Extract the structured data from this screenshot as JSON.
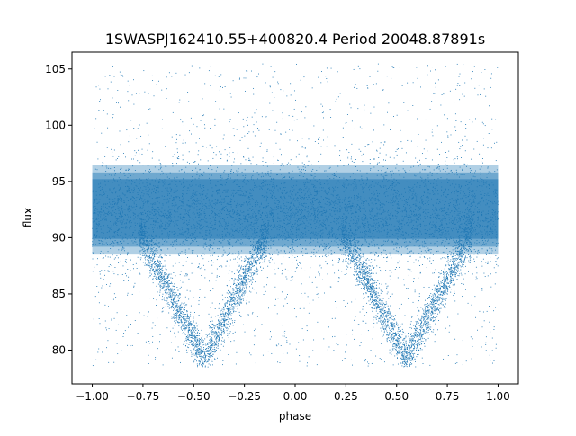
{
  "chart_data": {
    "type": "scatter",
    "title": "1SWASPJ162410.55+400820.4 Period 20048.87891s",
    "xlabel": "phase",
    "ylabel": "flux",
    "xlim": [
      -1.1,
      1.1
    ],
    "ylim": [
      77.0,
      106.5
    ],
    "xticks": [
      -1.0,
      -0.75,
      -0.5,
      -0.25,
      0.0,
      0.25,
      0.5,
      0.75,
      1.0
    ],
    "xtick_labels": [
      "−1.00",
      "−0.75",
      "−0.50",
      "−0.25",
      "0.00",
      "0.25",
      "0.50",
      "0.75",
      "1.00"
    ],
    "yticks": [
      80,
      85,
      90,
      95,
      100,
      105
    ],
    "ytick_labels": [
      "80",
      "85",
      "90",
      "95",
      "100",
      "105"
    ],
    "grid": false,
    "legend": "none",
    "marker_color": "#1f77b4",
    "x_range": [
      -1.0,
      1.0
    ],
    "band": {
      "center_flux": 92.0,
      "dense_range": [
        88.5,
        96.5
      ]
    },
    "eclipses": [
      {
        "phase_min": -0.45,
        "min_flux": 79.2,
        "half_width": 0.32
      },
      {
        "phase_min": 0.55,
        "min_flux": 79.2,
        "half_width": 0.32
      }
    ],
    "outlier_range": [
      78.5,
      105.5
    ]
  }
}
